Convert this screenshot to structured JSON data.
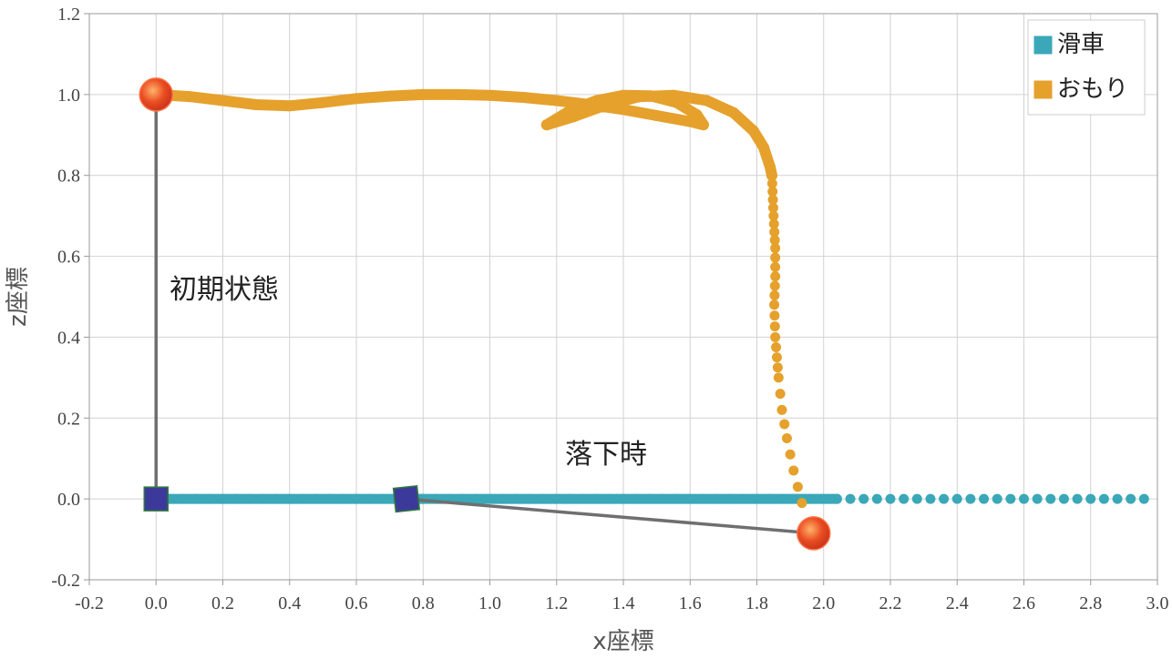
{
  "chart_data": {
    "type": "scatter",
    "title": "",
    "xlabel": "x座標",
    "ylabel": "z座標",
    "xlim": [
      -0.2,
      3.0
    ],
    "ylim": [
      -0.2,
      1.2
    ],
    "xticks": [
      "-0.2",
      "0.0",
      "0.2",
      "0.4",
      "0.6",
      "0.8",
      "1.0",
      "1.2",
      "1.4",
      "1.6",
      "1.8",
      "2.0",
      "2.2",
      "2.4",
      "2.6",
      "2.8",
      "3.0"
    ],
    "yticks": [
      "-0.2",
      "0.0",
      "0.2",
      "0.4",
      "0.6",
      "0.8",
      "1.0",
      "1.2"
    ],
    "grid": true,
    "legend_position": "top-right",
    "series": [
      {
        "name": "滑車",
        "color": "#3aa8b8",
        "marker": "circle",
        "path": [
          [
            0.0,
            0.0
          ],
          [
            2.96,
            0.0
          ]
        ],
        "dense_until_x": 2.04
      },
      {
        "name": "おもり",
        "color": "#e5a12c",
        "marker": "circle",
        "path": [
          [
            0.0,
            1.0
          ],
          [
            0.1,
            0.995
          ],
          [
            0.2,
            0.985
          ],
          [
            0.3,
            0.975
          ],
          [
            0.4,
            0.972
          ],
          [
            0.5,
            0.98
          ],
          [
            0.6,
            0.99
          ],
          [
            0.7,
            0.996
          ],
          [
            0.8,
            1.0
          ],
          [
            0.9,
            1.0
          ],
          [
            1.0,
            0.998
          ],
          [
            1.1,
            0.993
          ],
          [
            1.2,
            0.985
          ],
          [
            1.3,
            0.975
          ],
          [
            1.4,
            0.963
          ],
          [
            1.5,
            0.948
          ],
          [
            1.6,
            0.933
          ],
          [
            1.64,
            0.925
          ],
          [
            1.62,
            0.95
          ],
          [
            1.56,
            0.98
          ],
          [
            1.48,
            0.997
          ],
          [
            1.4,
            0.998
          ],
          [
            1.32,
            0.985
          ],
          [
            1.24,
            0.96
          ],
          [
            1.17,
            0.925
          ],
          [
            1.25,
            0.945
          ],
          [
            1.35,
            0.975
          ],
          [
            1.45,
            0.995
          ],
          [
            1.55,
            0.998
          ],
          [
            1.65,
            0.985
          ],
          [
            1.73,
            0.955
          ],
          [
            1.79,
            0.91
          ],
          [
            1.82,
            0.87
          ],
          [
            1.84,
            0.82
          ],
          [
            1.845,
            0.8
          ]
        ],
        "sparse_path": [
          [
            1.845,
            0.8
          ],
          [
            1.85,
            0.7
          ],
          [
            1.855,
            0.62
          ],
          [
            1.855,
            0.55
          ],
          [
            1.852,
            0.48
          ],
          [
            1.855,
            0.4
          ],
          [
            1.865,
            0.3
          ],
          [
            1.875,
            0.22
          ],
          [
            1.89,
            0.15
          ],
          [
            1.91,
            0.07
          ],
          [
            1.935,
            -0.01
          ]
        ]
      }
    ],
    "initial_state": {
      "label": "初期状態",
      "pulley": [
        0.0,
        0.0
      ],
      "weight": [
        0.0,
        1.0
      ]
    },
    "fall_state": {
      "label": "落下時",
      "pulley": [
        0.75,
        0.0
      ],
      "weight": [
        1.97,
        -0.085
      ]
    }
  }
}
